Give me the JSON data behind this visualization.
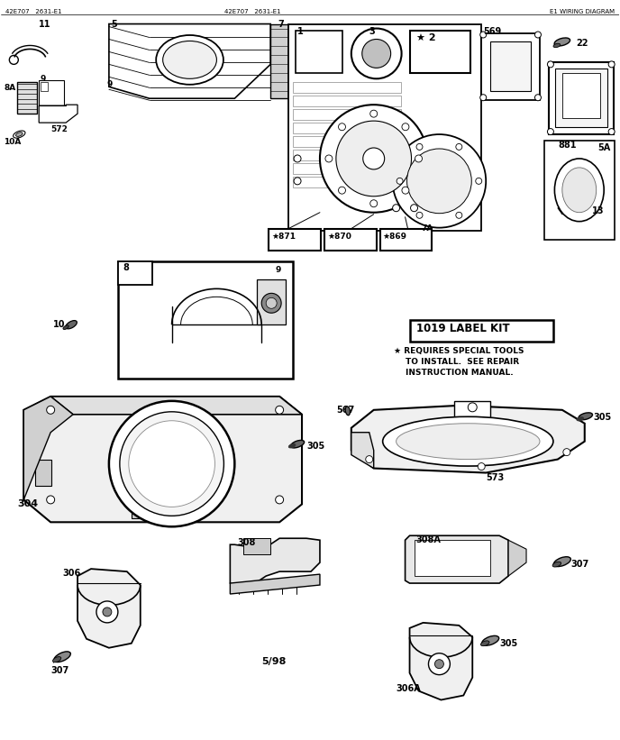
{
  "bg_color": "#ffffff",
  "line_color": "#000000",
  "header_left": "42E707   2631-E1",
  "header_mid": "42E707   2631-E1",
  "header_right": "E1 WIRING DIAGRAM",
  "label_kit_text": "1019 LABEL KIT",
  "note_line1": "* REQUIRES SPECIAL TOOLS",
  "note_line2": "TO INSTALL.  SEE REPAIR",
  "note_line3": "INSTRUCTION MANUAL.",
  "date_text": "5/98",
  "figsize": [
    6.88,
    8.21
  ],
  "dpi": 100
}
